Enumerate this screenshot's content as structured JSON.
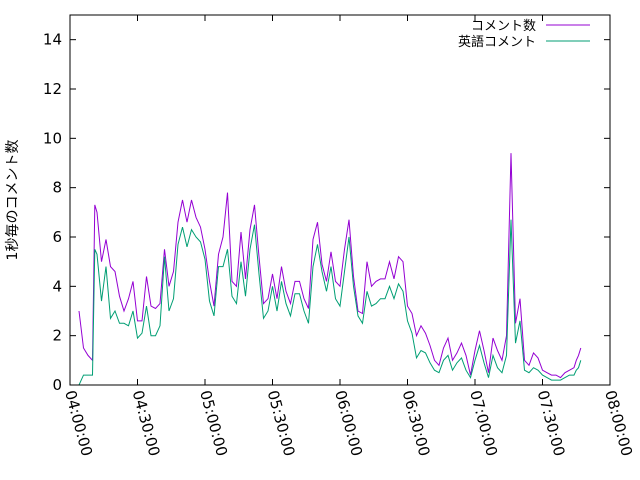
{
  "chart_data": {
    "type": "line",
    "title": "",
    "xlabel": "",
    "ylabel": "1秒毎のコメント数",
    "x_unit": "time (HH:MM:SS)",
    "xlim": [
      "04:00:00",
      "08:00:00"
    ],
    "ylim": [
      0,
      15
    ],
    "x_ticks": [
      "04:00:00",
      "04:30:00",
      "05:00:00",
      "05:30:00",
      "06:00:00",
      "06:30:00",
      "07:00:00",
      "07:30:00",
      "08:00:00"
    ],
    "y_ticks": [
      "0",
      "2",
      "4",
      "6",
      "8",
      "10",
      "12",
      "14"
    ],
    "legend_position": "top-right",
    "grid": false,
    "x": [
      "04:04:00",
      "04:06:00",
      "04:08:00",
      "04:10:00",
      "04:11:00",
      "04:12:00",
      "04:14:00",
      "04:16:00",
      "04:18:00",
      "04:20:00",
      "04:22:00",
      "04:24:00",
      "04:26:00",
      "04:28:00",
      "04:30:00",
      "04:32:00",
      "04:34:00",
      "04:36:00",
      "04:38:00",
      "04:40:00",
      "04:42:00",
      "04:44:00",
      "04:46:00",
      "04:48:00",
      "04:50:00",
      "04:52:00",
      "04:54:00",
      "04:56:00",
      "04:58:00",
      "05:00:00",
      "05:02:00",
      "05:04:00",
      "05:06:00",
      "05:08:00",
      "05:10:00",
      "05:12:00",
      "05:14:00",
      "05:16:00",
      "05:18:00",
      "05:20:00",
      "05:22:00",
      "05:24:00",
      "05:26:00",
      "05:28:00",
      "05:30:00",
      "05:32:00",
      "05:34:00",
      "05:36:00",
      "05:38:00",
      "05:40:00",
      "05:42:00",
      "05:44:00",
      "05:46:00",
      "05:48:00",
      "05:50:00",
      "05:52:00",
      "05:54:00",
      "05:56:00",
      "05:58:00",
      "06:00:00",
      "06:02:00",
      "06:04:00",
      "06:06:00",
      "06:08:00",
      "06:10:00",
      "06:12:00",
      "06:14:00",
      "06:16:00",
      "06:18:00",
      "06:20:00",
      "06:22:00",
      "06:24:00",
      "06:26:00",
      "06:28:00",
      "06:30:00",
      "06:32:00",
      "06:34:00",
      "06:36:00",
      "06:38:00",
      "06:40:00",
      "06:42:00",
      "06:44:00",
      "06:46:00",
      "06:48:00",
      "06:50:00",
      "06:52:00",
      "06:54:00",
      "06:56:00",
      "06:58:00",
      "07:00:00",
      "07:02:00",
      "07:04:00",
      "07:06:00",
      "07:08:00",
      "07:10:00",
      "07:12:00",
      "07:14:00",
      "07:16:00",
      "07:18:00",
      "07:20:00",
      "07:22:00",
      "07:24:00",
      "07:26:00",
      "07:28:00",
      "07:30:00",
      "07:32:00",
      "07:34:00",
      "07:36:00",
      "07:38:00",
      "07:40:00",
      "07:42:00",
      "07:44:00",
      "07:45:00",
      "07:46:00",
      "07:47:00"
    ],
    "series": [
      {
        "name": "コメント数",
        "color": "#9400d3",
        "values": [
          3.0,
          1.5,
          1.2,
          1.0,
          7.3,
          7.0,
          5.0,
          5.9,
          4.8,
          4.6,
          3.6,
          3.0,
          3.5,
          4.2,
          2.6,
          2.6,
          4.4,
          3.2,
          3.1,
          3.3,
          5.5,
          4.0,
          4.6,
          6.6,
          7.5,
          6.6,
          7.5,
          6.8,
          6.4,
          5.5,
          4.2,
          3.2,
          5.3,
          6.0,
          7.8,
          4.2,
          4.0,
          6.2,
          4.3,
          6.3,
          7.3,
          5.2,
          3.3,
          3.5,
          4.5,
          3.5,
          4.8,
          3.8,
          3.3,
          4.2,
          4.2,
          3.5,
          3.1,
          5.9,
          6.6,
          4.9,
          4.2,
          5.4,
          4.2,
          4.0,
          5.5,
          6.7,
          4.4,
          3.0,
          2.9,
          5.0,
          4.0,
          4.2,
          4.3,
          4.3,
          5.0,
          4.3,
          5.2,
          5.0,
          3.2,
          2.9,
          2.0,
          2.4,
          2.1,
          1.6,
          1.0,
          0.8,
          1.5,
          1.9,
          1.0,
          1.3,
          1.7,
          1.2,
          0.4,
          1.4,
          2.2,
          1.4,
          0.5,
          1.9,
          1.4,
          1.0,
          2.0,
          9.4,
          2.5,
          3.5,
          1.0,
          0.8,
          1.3,
          1.1,
          0.6,
          0.5,
          0.4,
          0.4,
          0.3,
          0.5,
          0.6,
          0.7,
          1.0,
          1.2,
          1.5
        ]
      },
      {
        "name": "英語コメント",
        "color": "#009e73",
        "values": [
          0.0,
          0.4,
          0.4,
          0.4,
          5.5,
          5.3,
          3.4,
          4.8,
          2.7,
          3.0,
          2.5,
          2.5,
          2.4,
          3.0,
          1.9,
          2.1,
          3.2,
          2.0,
          2.0,
          2.4,
          5.2,
          3.0,
          3.5,
          5.7,
          6.4,
          5.6,
          6.3,
          6.0,
          5.8,
          5.1,
          3.4,
          2.8,
          4.8,
          4.8,
          5.5,
          3.6,
          3.3,
          5.0,
          3.6,
          5.5,
          6.5,
          4.5,
          2.7,
          3.0,
          4.0,
          3.0,
          4.2,
          3.3,
          2.8,
          3.7,
          3.7,
          3.0,
          2.5,
          4.8,
          5.7,
          4.6,
          3.8,
          4.8,
          3.5,
          3.2,
          4.6,
          6.0,
          4.0,
          2.8,
          2.5,
          3.8,
          3.2,
          3.3,
          3.5,
          3.5,
          4.0,
          3.5,
          4.1,
          3.8,
          2.6,
          2.1,
          1.1,
          1.4,
          1.3,
          0.9,
          0.6,
          0.5,
          1.0,
          1.2,
          0.6,
          0.9,
          1.1,
          0.6,
          0.3,
          1.0,
          1.6,
          0.9,
          0.3,
          1.2,
          0.7,
          0.5,
          1.2,
          6.7,
          1.7,
          2.6,
          0.6,
          0.5,
          0.7,
          0.6,
          0.4,
          0.3,
          0.2,
          0.2,
          0.2,
          0.3,
          0.4,
          0.4,
          0.6,
          0.7,
          1.0
        ]
      }
    ]
  }
}
